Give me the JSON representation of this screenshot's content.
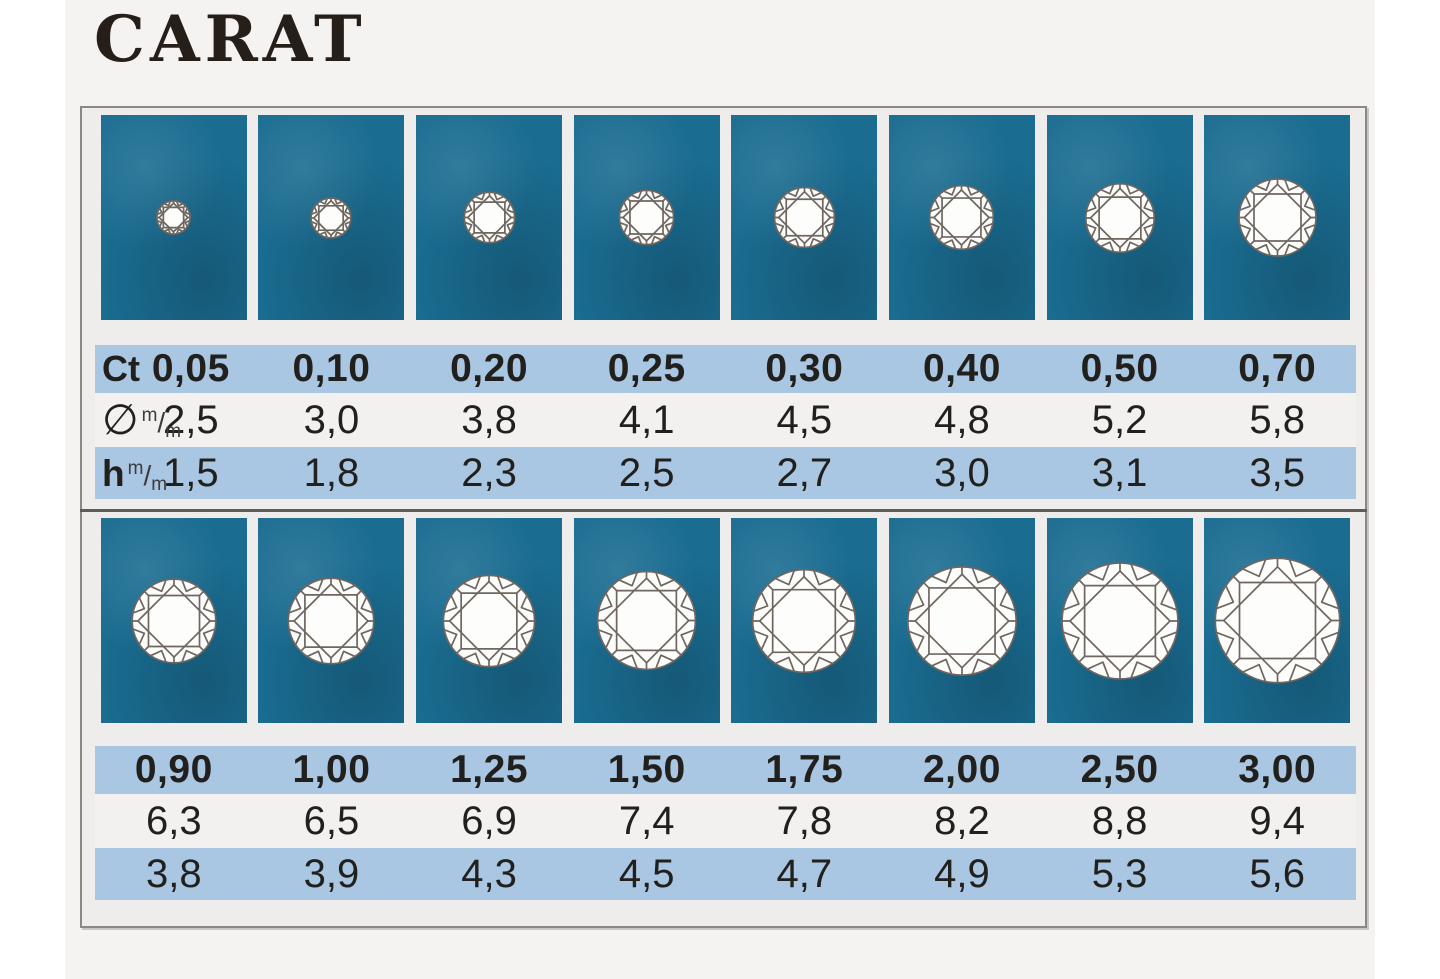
{
  "title": "CARAT",
  "labels": {
    "carat": "Ct",
    "diameter": "∅",
    "height": "h",
    "unit_numerator": "m",
    "unit_slash": "/",
    "unit_denominator": "m"
  },
  "colors": {
    "felt_teal": "#1a6c91",
    "table_band_blue": "#a9c6e2",
    "table_light_row": "#f2f1ef",
    "panel_background": "#eeedeb",
    "panel_border": "#8a8884",
    "text_dark": "#22201d",
    "title_dark": "#261e19"
  },
  "groups": [
    {
      "stones": [
        {
          "ct": "0,05",
          "d": "2,5",
          "h": "1,5",
          "mm": 2.5
        },
        {
          "ct": "0,10",
          "d": "3,0",
          "h": "1,8",
          "mm": 3.0
        },
        {
          "ct": "0,20",
          "d": "3,8",
          "h": "2,3",
          "mm": 3.8
        },
        {
          "ct": "0,25",
          "d": "4,1",
          "h": "2,5",
          "mm": 4.1
        },
        {
          "ct": "0,30",
          "d": "4,5",
          "h": "2,7",
          "mm": 4.5
        },
        {
          "ct": "0,40",
          "d": "4,8",
          "h": "3,0",
          "mm": 4.8
        },
        {
          "ct": "0,50",
          "d": "5,2",
          "h": "3,1",
          "mm": 5.2
        },
        {
          "ct": "0,70",
          "d": "5,8",
          "h": "3,5",
          "mm": 5.8
        }
      ]
    },
    {
      "stones": [
        {
          "ct": "0,90",
          "d": "6,3",
          "h": "3,8",
          "mm": 6.3
        },
        {
          "ct": "1,00",
          "d": "6,5",
          "h": "3,9",
          "mm": 6.5
        },
        {
          "ct": "1,25",
          "d": "6,9",
          "h": "4,3",
          "mm": 6.9
        },
        {
          "ct": "1,50",
          "d": "7,4",
          "h": "4,5",
          "mm": 7.4
        },
        {
          "ct": "1,75",
          "d": "7,8",
          "h": "4,7",
          "mm": 7.8
        },
        {
          "ct": "2,00",
          "d": "8,2",
          "h": "4,9",
          "mm": 8.2
        },
        {
          "ct": "2,50",
          "d": "8,8",
          "h": "5,3",
          "mm": 8.8
        },
        {
          "ct": "3,00",
          "d": "9,4",
          "h": "5,6",
          "mm": 9.4
        }
      ]
    }
  ],
  "chart_data": {
    "type": "table",
    "title": "CARAT",
    "columns": [
      "carat (Ct)",
      "diameter ∅ (mm)",
      "height h (mm)"
    ],
    "records": [
      [
        0.05,
        2.5,
        1.5
      ],
      [
        0.1,
        3.0,
        1.8
      ],
      [
        0.2,
        3.8,
        2.3
      ],
      [
        0.25,
        4.1,
        2.5
      ],
      [
        0.3,
        4.5,
        2.7
      ],
      [
        0.4,
        4.8,
        3.0
      ],
      [
        0.5,
        5.2,
        3.1
      ],
      [
        0.7,
        5.8,
        3.5
      ],
      [
        0.9,
        6.3,
        3.8
      ],
      [
        1.0,
        6.5,
        3.9
      ],
      [
        1.25,
        6.9,
        4.3
      ],
      [
        1.5,
        7.4,
        4.5
      ],
      [
        1.75,
        7.8,
        4.7
      ],
      [
        2.0,
        8.2,
        4.9
      ],
      [
        2.5,
        8.8,
        5.3
      ],
      [
        3.0,
        9.4,
        5.6
      ]
    ]
  }
}
